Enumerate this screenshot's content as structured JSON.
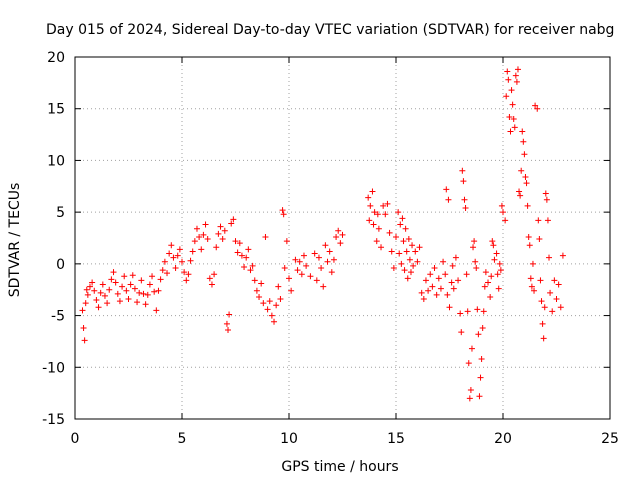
{
  "chart_data": {
    "type": "scatter",
    "title": "Day 015 of 2024, Sidereal Day-to-day VTEC variation (SDTVAR) for receiver nabg",
    "xlabel": "GPS time / hours",
    "ylabel": "SDTVAR / TECUs",
    "xlim": [
      0,
      25
    ],
    "ylim": [
      -15,
      20
    ],
    "x_ticks": [
      0,
      5,
      10,
      15,
      20,
      25
    ],
    "y_ticks": [
      -15,
      -10,
      -5,
      0,
      5,
      10,
      15,
      20
    ],
    "x_tick_labels": [
      "0",
      "5",
      "10",
      "15",
      "20",
      "25"
    ],
    "y_tick_labels": [
      "-15",
      "-10",
      "-5",
      "0",
      "5",
      "10",
      "15",
      "20"
    ],
    "grid": true,
    "marker": "+",
    "series": [
      {
        "name": "SDTVAR",
        "color": "#ff0000",
        "points": [
          [
            0.35,
            -4.5
          ],
          [
            0.4,
            -6.2
          ],
          [
            0.45,
            -7.4
          ],
          [
            0.5,
            -3.8
          ],
          [
            0.55,
            -2.5
          ],
          [
            0.6,
            -3.0
          ],
          [
            0.7,
            -2.2
          ],
          [
            0.8,
            -1.8
          ],
          [
            0.9,
            -2.6
          ],
          [
            1.0,
            -3.5
          ],
          [
            1.1,
            -4.2
          ],
          [
            1.2,
            -2.8
          ],
          [
            1.3,
            -2.0
          ],
          [
            1.4,
            -3.1
          ],
          [
            1.5,
            -3.8
          ],
          [
            1.6,
            -2.5
          ],
          [
            1.7,
            -1.5
          ],
          [
            1.8,
            -0.8
          ],
          [
            1.9,
            -1.8
          ],
          [
            2.0,
            -2.9
          ],
          [
            2.1,
            -3.6
          ],
          [
            2.2,
            -2.2
          ],
          [
            2.3,
            -1.2
          ],
          [
            2.4,
            -2.6
          ],
          [
            2.5,
            -3.4
          ],
          [
            2.6,
            -2.0
          ],
          [
            2.7,
            -1.1
          ],
          [
            2.8,
            -2.4
          ],
          [
            2.9,
            -3.7
          ],
          [
            3.0,
            -2.8
          ],
          [
            3.1,
            -1.6
          ],
          [
            3.2,
            -2.9
          ],
          [
            3.3,
            -3.9
          ],
          [
            3.4,
            -3.0
          ],
          [
            3.5,
            -2.0
          ],
          [
            3.6,
            -1.2
          ],
          [
            3.7,
            -2.7
          ],
          [
            3.8,
            -4.5
          ],
          [
            3.9,
            -2.6
          ],
          [
            4.0,
            -1.5
          ],
          [
            4.1,
            -0.6
          ],
          [
            4.2,
            0.2
          ],
          [
            4.3,
            -0.9
          ],
          [
            4.4,
            1.0
          ],
          [
            4.5,
            1.8
          ],
          [
            4.6,
            0.6
          ],
          [
            4.7,
            -0.4
          ],
          [
            4.8,
            0.8
          ],
          [
            4.9,
            1.4
          ],
          [
            5.0,
            0.2
          ],
          [
            5.1,
            -0.8
          ],
          [
            5.2,
            -1.6
          ],
          [
            5.3,
            -1.0
          ],
          [
            5.4,
            0.3
          ],
          [
            5.5,
            1.2
          ],
          [
            5.6,
            2.2
          ],
          [
            5.7,
            3.4
          ],
          [
            5.8,
            2.6
          ],
          [
            5.9,
            1.4
          ],
          [
            6.0,
            2.8
          ],
          [
            6.1,
            3.8
          ],
          [
            6.2,
            2.4
          ],
          [
            6.3,
            -1.4
          ],
          [
            6.4,
            -2.0
          ],
          [
            6.5,
            -1.0
          ],
          [
            6.6,
            1.6
          ],
          [
            6.7,
            2.9
          ],
          [
            6.8,
            3.6
          ],
          [
            6.9,
            2.4
          ],
          [
            7.0,
            3.2
          ],
          [
            7.1,
            -5.8
          ],
          [
            7.15,
            -6.4
          ],
          [
            7.2,
            -4.9
          ],
          [
            7.3,
            3.9
          ],
          [
            7.4,
            4.3
          ],
          [
            7.5,
            2.2
          ],
          [
            7.6,
            1.1
          ],
          [
            7.7,
            2.0
          ],
          [
            7.8,
            0.8
          ],
          [
            7.9,
            -0.3
          ],
          [
            8.0,
            0.6
          ],
          [
            8.1,
            1.4
          ],
          [
            8.2,
            -0.6
          ],
          [
            8.3,
            -0.2
          ],
          [
            8.4,
            -1.6
          ],
          [
            8.5,
            -2.6
          ],
          [
            8.6,
            -3.2
          ],
          [
            8.7,
            -1.9
          ],
          [
            8.8,
            -3.8
          ],
          [
            8.9,
            2.6
          ],
          [
            9.0,
            -4.4
          ],
          [
            9.1,
            -3.6
          ],
          [
            9.2,
            -5.0
          ],
          [
            9.3,
            -5.6
          ],
          [
            9.4,
            -4.0
          ],
          [
            9.5,
            -2.2
          ],
          [
            9.6,
            -3.4
          ],
          [
            9.7,
            5.2
          ],
          [
            9.75,
            4.8
          ],
          [
            9.8,
            -0.4
          ],
          [
            9.9,
            2.2
          ],
          [
            10.0,
            -1.4
          ],
          [
            10.1,
            -2.6
          ],
          [
            10.3,
            0.4
          ],
          [
            10.4,
            -0.6
          ],
          [
            10.5,
            0.2
          ],
          [
            10.6,
            -1.0
          ],
          [
            10.7,
            0.8
          ],
          [
            10.8,
            -0.2
          ],
          [
            11.0,
            -1.2
          ],
          [
            11.2,
            1.0
          ],
          [
            11.3,
            -1.6
          ],
          [
            11.4,
            0.6
          ],
          [
            11.5,
            -0.4
          ],
          [
            11.6,
            -2.2
          ],
          [
            11.7,
            1.8
          ],
          [
            11.8,
            0.2
          ],
          [
            11.9,
            1.2
          ],
          [
            12.0,
            -0.8
          ],
          [
            12.1,
            0.4
          ],
          [
            12.2,
            2.6
          ],
          [
            12.3,
            3.2
          ],
          [
            12.4,
            2.0
          ],
          [
            12.5,
            2.8
          ],
          [
            13.7,
            6.4
          ],
          [
            13.75,
            4.2
          ],
          [
            13.8,
            5.6
          ],
          [
            13.9,
            7.0
          ],
          [
            13.95,
            3.8
          ],
          [
            14.0,
            5.0
          ],
          [
            14.1,
            2.2
          ],
          [
            14.15,
            4.8
          ],
          [
            14.2,
            3.4
          ],
          [
            14.3,
            1.6
          ],
          [
            14.4,
            5.6
          ],
          [
            14.5,
            4.8
          ],
          [
            14.6,
            5.8
          ],
          [
            14.7,
            3.0
          ],
          [
            14.8,
            1.2
          ],
          [
            14.9,
            -0.4
          ],
          [
            15.0,
            2.6
          ],
          [
            15.1,
            5.0
          ],
          [
            15.15,
            1.0
          ],
          [
            15.2,
            3.8
          ],
          [
            15.25,
            0.0
          ],
          [
            15.3,
            4.4
          ],
          [
            15.35,
            2.2
          ],
          [
            15.4,
            -0.6
          ],
          [
            15.45,
            3.4
          ],
          [
            15.5,
            1.2
          ],
          [
            15.55,
            -1.4
          ],
          [
            15.6,
            2.4
          ],
          [
            15.65,
            0.4
          ],
          [
            15.7,
            -0.8
          ],
          [
            15.75,
            1.8
          ],
          [
            15.8,
            -0.2
          ],
          [
            15.9,
            1.2
          ],
          [
            16.0,
            0.2
          ],
          [
            16.1,
            1.6
          ],
          [
            16.2,
            -2.8
          ],
          [
            16.3,
            -3.4
          ],
          [
            16.4,
            -1.6
          ],
          [
            16.5,
            -2.6
          ],
          [
            16.6,
            -1.0
          ],
          [
            16.7,
            -2.2
          ],
          [
            16.8,
            -0.4
          ],
          [
            16.9,
            -3.0
          ],
          [
            17.0,
            -1.4
          ],
          [
            17.1,
            -2.4
          ],
          [
            17.2,
            0.2
          ],
          [
            17.3,
            -1.0
          ],
          [
            17.35,
            7.2
          ],
          [
            17.4,
            -3.0
          ],
          [
            17.45,
            6.2
          ],
          [
            17.5,
            -4.2
          ],
          [
            17.6,
            -1.8
          ],
          [
            17.65,
            -0.2
          ],
          [
            17.7,
            -2.4
          ],
          [
            17.8,
            0.6
          ],
          [
            17.9,
            -1.6
          ],
          [
            18.0,
            -4.8
          ],
          [
            18.05,
            -6.6
          ],
          [
            18.1,
            9.0
          ],
          [
            18.15,
            8.0
          ],
          [
            18.2,
            6.2
          ],
          [
            18.25,
            5.4
          ],
          [
            18.3,
            -1.0
          ],
          [
            18.35,
            -4.6
          ],
          [
            18.4,
            -9.6
          ],
          [
            18.45,
            -13.0
          ],
          [
            18.5,
            -12.2
          ],
          [
            18.55,
            -8.2
          ],
          [
            18.6,
            1.6
          ],
          [
            18.65,
            2.2
          ],
          [
            18.7,
            0.2
          ],
          [
            18.75,
            -0.4
          ],
          [
            18.8,
            -4.4
          ],
          [
            18.85,
            -6.8
          ],
          [
            18.9,
            -12.8
          ],
          [
            18.95,
            -11.0
          ],
          [
            19.0,
            -9.2
          ],
          [
            19.05,
            -6.2
          ],
          [
            19.1,
            -4.6
          ],
          [
            19.15,
            -2.2
          ],
          [
            19.2,
            -0.8
          ],
          [
            19.3,
            -1.8
          ],
          [
            19.4,
            -3.2
          ],
          [
            19.45,
            -1.2
          ],
          [
            19.5,
            2.2
          ],
          [
            19.55,
            1.8
          ],
          [
            19.6,
            0.4
          ],
          [
            19.7,
            1.0
          ],
          [
            19.75,
            -1.0
          ],
          [
            19.8,
            -2.4
          ],
          [
            19.85,
            0.0
          ],
          [
            19.9,
            -0.6
          ],
          [
            19.95,
            5.6
          ],
          [
            20.0,
            5.0
          ],
          [
            20.1,
            4.2
          ],
          [
            20.15,
            16.2
          ],
          [
            20.2,
            18.6
          ],
          [
            20.25,
            17.8
          ],
          [
            20.3,
            14.2
          ],
          [
            20.35,
            12.8
          ],
          [
            20.4,
            16.8
          ],
          [
            20.45,
            15.4
          ],
          [
            20.5,
            14.0
          ],
          [
            20.55,
            13.2
          ],
          [
            20.6,
            18.2
          ],
          [
            20.65,
            17.6
          ],
          [
            20.7,
            18.8
          ],
          [
            20.75,
            7.0
          ],
          [
            20.8,
            6.6
          ],
          [
            20.85,
            9.0
          ],
          [
            20.9,
            12.8
          ],
          [
            20.95,
            11.8
          ],
          [
            21.0,
            10.6
          ],
          [
            21.05,
            8.4
          ],
          [
            21.1,
            7.8
          ],
          [
            21.15,
            5.6
          ],
          [
            21.2,
            2.6
          ],
          [
            21.25,
            1.8
          ],
          [
            21.3,
            -1.4
          ],
          [
            21.35,
            -2.2
          ],
          [
            21.4,
            0.0
          ],
          [
            21.45,
            -2.6
          ],
          [
            21.5,
            15.3
          ],
          [
            21.6,
            15.0
          ],
          [
            21.65,
            4.2
          ],
          [
            21.7,
            2.4
          ],
          [
            21.75,
            -1.6
          ],
          [
            21.8,
            -3.6
          ],
          [
            21.85,
            -5.8
          ],
          [
            21.9,
            -7.2
          ],
          [
            21.95,
            -4.2
          ],
          [
            22.0,
            6.8
          ],
          [
            22.05,
            6.2
          ],
          [
            22.1,
            4.2
          ],
          [
            22.15,
            0.6
          ],
          [
            22.2,
            -2.8
          ],
          [
            22.3,
            -4.6
          ],
          [
            22.4,
            -1.6
          ],
          [
            22.5,
            -3.4
          ],
          [
            22.6,
            -2.0
          ],
          [
            22.7,
            -4.2
          ],
          [
            22.8,
            0.8
          ]
        ]
      }
    ]
  }
}
